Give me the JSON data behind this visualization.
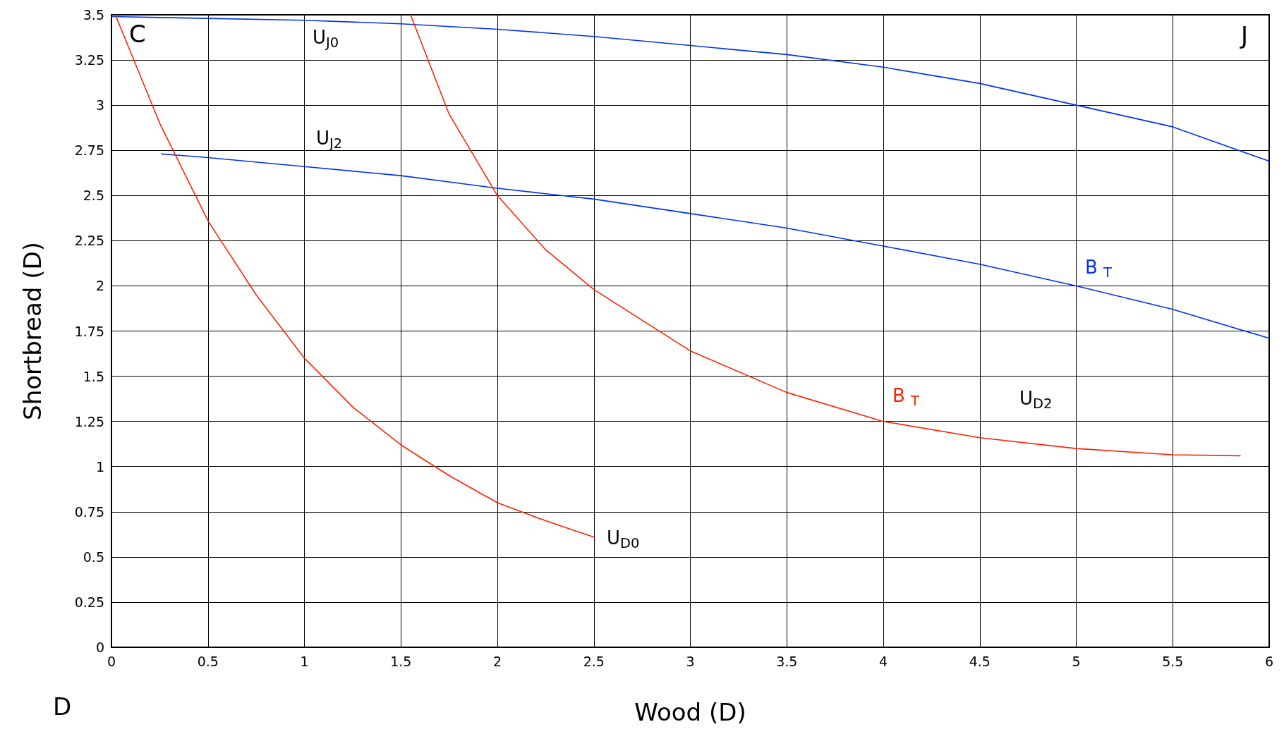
{
  "chart_data": {
    "type": "line",
    "xlabel": "Wood (D)",
    "ylabel": "Shortbread (D)",
    "xlim": [
      0,
      6
    ],
    "xticks": [
      0,
      0.5,
      1,
      1.5,
      2,
      2.5,
      3,
      3.5,
      4,
      4.5,
      5,
      5.5,
      6
    ],
    "ylim": [
      0,
      3.5
    ],
    "yticks": [
      0,
      0.25,
      0.5,
      0.75,
      1,
      1.25,
      1.5,
      1.75,
      2,
      2.25,
      2.5,
      2.75,
      3,
      3.25,
      3.5
    ],
    "grid": true,
    "marker": "none",
    "line_style": "solid",
    "series": [
      {
        "color": "#0033ee",
        "x": [
          0,
          0.5,
          1,
          1.5,
          2,
          2.5,
          3,
          3.5,
          4,
          4.5,
          5,
          5.5,
          6
        ],
        "values": [
          3.49,
          3.48,
          3.47,
          3.45,
          3.42,
          3.38,
          3.33,
          3.28,
          3.21,
          3.12,
          3.0,
          2.88,
          2.69
        ]
      },
      {
        "color": "#0033ee",
        "x": [
          0.26,
          0.5,
          1,
          1.5,
          2,
          2.5,
          3,
          3.5,
          4,
          4.5,
          5,
          5.5,
          6
        ],
        "values": [
          2.73,
          2.71,
          2.66,
          2.61,
          2.54,
          2.48,
          2.4,
          2.32,
          2.22,
          2.12,
          2.0,
          1.87,
          1.71
        ]
      },
      {
        "color": "#ff2200",
        "x": [
          0.02,
          0.25,
          0.5,
          0.75,
          1,
          1.25,
          1.5,
          1.75,
          2,
          2.25,
          2.5
        ],
        "values": [
          3.5,
          2.9,
          2.36,
          1.95,
          1.6,
          1.33,
          1.12,
          0.95,
          0.8,
          0.7,
          0.61
        ]
      },
      {
        "color": "#ff2200",
        "x": [
          1.55,
          1.75,
          2,
          2.25,
          2.5,
          3,
          3.5,
          4,
          4.5,
          5,
          5.5,
          5.85
        ],
        "values": [
          3.5,
          2.95,
          2.5,
          2.2,
          1.98,
          1.64,
          1.41,
          1.25,
          1.16,
          1.1,
          1.065,
          1.06
        ]
      }
    ],
    "annotations": [
      "C",
      "J",
      "D",
      "U$_{J0}$",
      "U$_{J2}$",
      "B $_{T}$",
      "B $_{T}$",
      "U$_{D0}$",
      "U$_{D2}$"
    ]
  }
}
